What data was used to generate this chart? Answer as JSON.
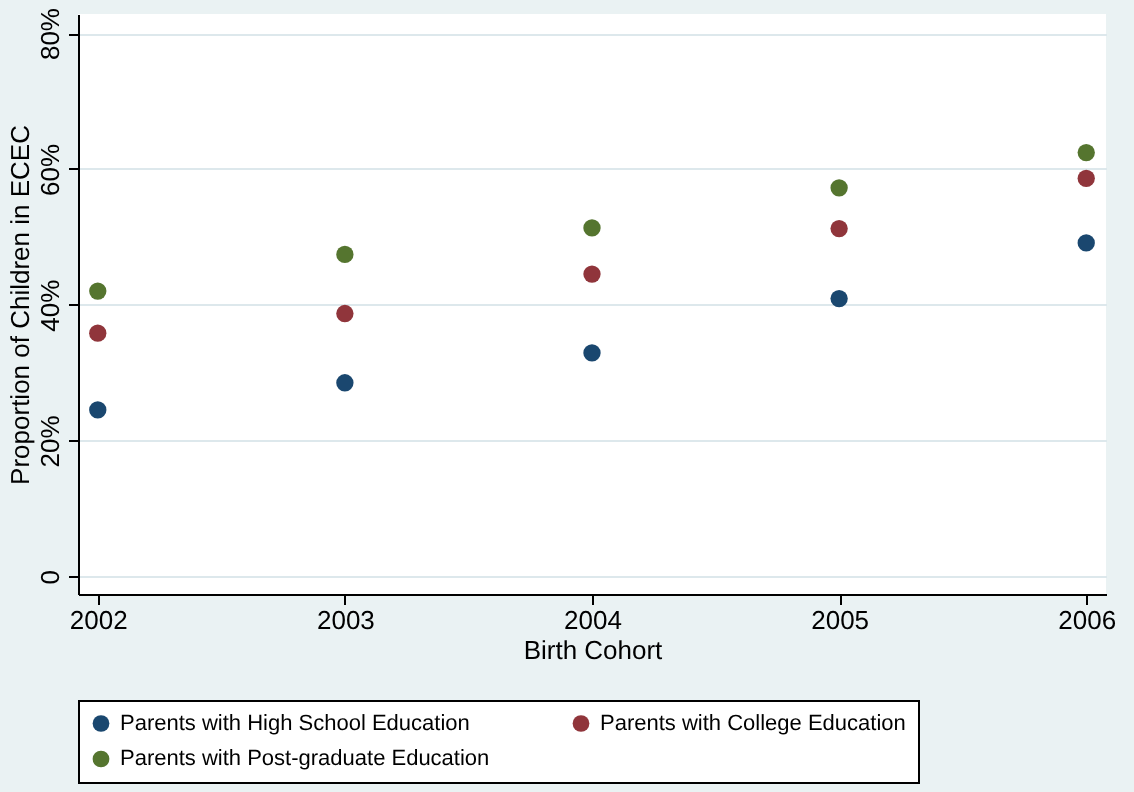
{
  "chart_data": {
    "type": "scatter",
    "xlabel": "Birth Cohort",
    "ylabel": "Proportion of Children in ECEC",
    "x": [
      2002,
      2003,
      2004,
      2005,
      2006
    ],
    "series": [
      {
        "name": "Parents with High School Education",
        "color": "#1a476f",
        "values": [
          24.5,
          28.5,
          32.9,
          40.9,
          49.1
        ]
      },
      {
        "name": "Parents with College Education",
        "color": "#90353b",
        "values": [
          35.8,
          38.7,
          44.5,
          51.2,
          58.6
        ]
      },
      {
        "name": "Parents with Post-graduate Education",
        "color": "#55752f",
        "values": [
          42.0,
          47.4,
          51.3,
          57.2,
          62.4
        ]
      }
    ],
    "xlim": [
      2001.92,
      2006.08
    ],
    "xticks": [
      2002,
      2003,
      2004,
      2005,
      2006
    ],
    "ylim": [
      -2.6,
      82.8
    ],
    "yticks": [
      0,
      {
        "value": 20,
        "label": "20%"
      },
      {
        "value": 40,
        "label": "40%"
      },
      {
        "value": 60,
        "label": "60%"
      },
      {
        "value": 80,
        "label": "80%"
      }
    ],
    "grid": "y",
    "legend": "bottom"
  }
}
